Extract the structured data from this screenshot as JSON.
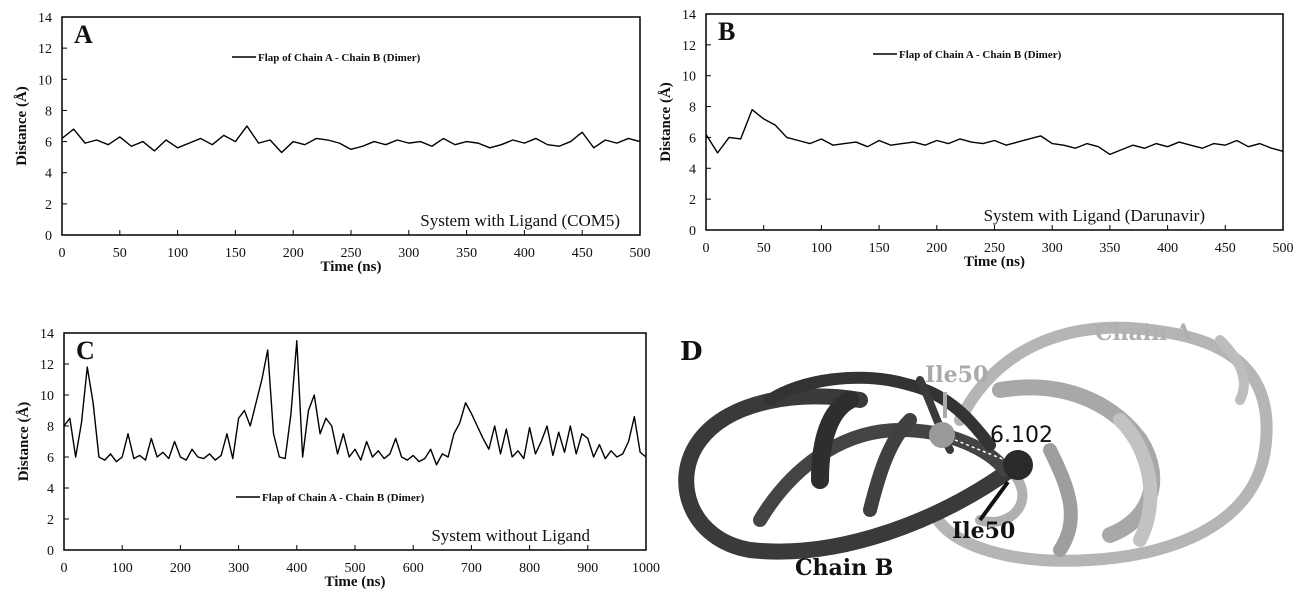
{
  "chart_data": [
    {
      "type": "line",
      "panel": "A",
      "xlabel": "Time (ns)",
      "ylabel": "Distance (Å)",
      "annotation": "System with Ligand (COM5)",
      "legend": "upper center",
      "xlim": [
        0,
        500
      ],
      "xticks": [
        0,
        50,
        100,
        150,
        200,
        250,
        300,
        350,
        400,
        450,
        500
      ],
      "ylim": [
        0,
        14
      ],
      "yticks": [
        0,
        2,
        4,
        6,
        8,
        10,
        12,
        14
      ],
      "x": [
        0,
        10,
        20,
        30,
        40,
        50,
        60,
        70,
        80,
        90,
        100,
        110,
        120,
        130,
        140,
        150,
        160,
        170,
        180,
        190,
        200,
        210,
        220,
        230,
        240,
        250,
        260,
        270,
        280,
        290,
        300,
        310,
        320,
        330,
        340,
        350,
        360,
        370,
        380,
        390,
        400,
        410,
        420,
        430,
        440,
        450,
        460,
        470,
        480,
        490,
        500
      ],
      "series": [
        {
          "name": "Flap of Chain A - Chain B (Dimer)",
          "color": "#000000",
          "values": [
            6.2,
            6.8,
            5.9,
            6.1,
            5.8,
            6.3,
            5.7,
            6.0,
            5.4,
            6.1,
            5.6,
            5.9,
            6.2,
            5.8,
            6.4,
            6.0,
            7.0,
            5.9,
            6.1,
            5.3,
            6.0,
            5.8,
            6.2,
            6.1,
            5.9,
            5.5,
            5.7,
            6.0,
            5.8,
            6.1,
            5.9,
            6.0,
            5.7,
            6.2,
            5.8,
            6.0,
            5.9,
            5.6,
            5.8,
            6.1,
            5.9,
            6.2,
            5.8,
            5.7,
            6.0,
            6.6,
            5.6,
            6.1,
            5.9,
            6.2,
            6.0
          ]
        }
      ]
    },
    {
      "type": "line",
      "panel": "B",
      "xlabel": "Time (ns)",
      "ylabel": "Distance (Å)",
      "annotation": "System with Ligand (Darunavir)",
      "legend": "upper center",
      "xlim": [
        0,
        500
      ],
      "xticks": [
        0,
        50,
        100,
        150,
        200,
        250,
        300,
        350,
        400,
        450,
        500
      ],
      "ylim": [
        0,
        14
      ],
      "yticks": [
        0,
        2,
        4,
        6,
        8,
        10,
        12,
        14
      ],
      "x": [
        0,
        10,
        20,
        30,
        40,
        50,
        60,
        70,
        80,
        90,
        100,
        110,
        120,
        130,
        140,
        150,
        160,
        170,
        180,
        190,
        200,
        210,
        220,
        230,
        240,
        250,
        260,
        270,
        280,
        290,
        300,
        310,
        320,
        330,
        340,
        350,
        360,
        370,
        380,
        390,
        400,
        410,
        420,
        430,
        440,
        450,
        460,
        470,
        480,
        490,
        500
      ],
      "series": [
        {
          "name": "Flap of Chain A - Chain B (Dimer)",
          "color": "#000000",
          "values": [
            6.2,
            5.0,
            6.0,
            5.9,
            7.8,
            7.2,
            6.8,
            6.0,
            5.8,
            5.6,
            5.9,
            5.5,
            5.6,
            5.7,
            5.4,
            5.8,
            5.5,
            5.6,
            5.7,
            5.5,
            5.8,
            5.6,
            5.9,
            5.7,
            5.6,
            5.8,
            5.5,
            5.7,
            5.9,
            6.1,
            5.6,
            5.5,
            5.3,
            5.6,
            5.4,
            4.9,
            5.2,
            5.5,
            5.3,
            5.6,
            5.4,
            5.7,
            5.5,
            5.3,
            5.6,
            5.5,
            5.8,
            5.4,
            5.6,
            5.3,
            5.1
          ]
        }
      ]
    },
    {
      "type": "line",
      "panel": "C",
      "xlabel": "Time (ns)",
      "ylabel": "Distance (Å)",
      "annotation": "System without Ligand",
      "legend": "lower center",
      "xlim": [
        0,
        1000
      ],
      "xticks": [
        0,
        100,
        200,
        300,
        400,
        500,
        600,
        700,
        800,
        900,
        1000
      ],
      "ylim": [
        0,
        14
      ],
      "yticks": [
        0,
        2,
        4,
        6,
        8,
        10,
        12,
        14
      ],
      "x": [
        0,
        10,
        20,
        30,
        40,
        50,
        60,
        70,
        80,
        90,
        100,
        110,
        120,
        130,
        140,
        150,
        160,
        170,
        180,
        190,
        200,
        210,
        220,
        230,
        240,
        250,
        260,
        270,
        280,
        290,
        300,
        310,
        320,
        330,
        340,
        350,
        360,
        370,
        380,
        390,
        400,
        410,
        420,
        430,
        440,
        450,
        460,
        470,
        480,
        490,
        500,
        510,
        520,
        530,
        540,
        550,
        560,
        570,
        580,
        590,
        600,
        610,
        620,
        630,
        640,
        650,
        660,
        670,
        680,
        690,
        700,
        710,
        720,
        730,
        740,
        750,
        760,
        770,
        780,
        790,
        800,
        810,
        820,
        830,
        840,
        850,
        860,
        870,
        880,
        890,
        900,
        910,
        920,
        930,
        940,
        950,
        960,
        970,
        980,
        990,
        1000
      ],
      "series": [
        {
          "name": "Flap of Chain A - Chain B (Dimer)",
          "color": "#000000",
          "values": [
            8.0,
            8.5,
            6.0,
            8.2,
            11.8,
            9.5,
            6.0,
            5.8,
            6.2,
            5.7,
            6.0,
            7.5,
            5.9,
            6.1,
            5.8,
            7.2,
            6.0,
            6.3,
            5.9,
            7.0,
            6.0,
            5.8,
            6.5,
            6.0,
            5.9,
            6.2,
            5.8,
            6.1,
            7.5,
            5.9,
            8.5,
            9.0,
            8.0,
            9.5,
            11.0,
            12.9,
            7.5,
            6.0,
            5.9,
            8.8,
            13.5,
            6.0,
            9.0,
            10.0,
            7.5,
            8.5,
            8.0,
            6.2,
            7.5,
            6.0,
            6.5,
            5.8,
            7.0,
            6.0,
            6.4,
            5.9,
            6.2,
            7.2,
            6.0,
            5.8,
            6.1,
            5.7,
            5.9,
            6.5,
            5.5,
            6.2,
            6.0,
            7.5,
            8.2,
            9.5,
            8.8,
            8.0,
            7.2,
            6.5,
            8.0,
            6.2,
            7.8,
            6.0,
            6.4,
            5.9,
            7.9,
            6.2,
            7.0,
            8.0,
            6.1,
            7.6,
            6.3,
            8.0,
            6.2,
            7.5,
            7.2,
            6.0,
            6.8,
            5.9,
            6.4,
            6.0,
            6.2,
            7.0,
            8.6,
            6.3,
            6.0
          ]
        }
      ]
    }
  ],
  "structure_panel": {
    "panel": "D",
    "chain_a": "Chain A",
    "chain_b": "Chain B",
    "residue_a": "Ile50",
    "residue_b": "Ile50",
    "distance": "6.102"
  }
}
